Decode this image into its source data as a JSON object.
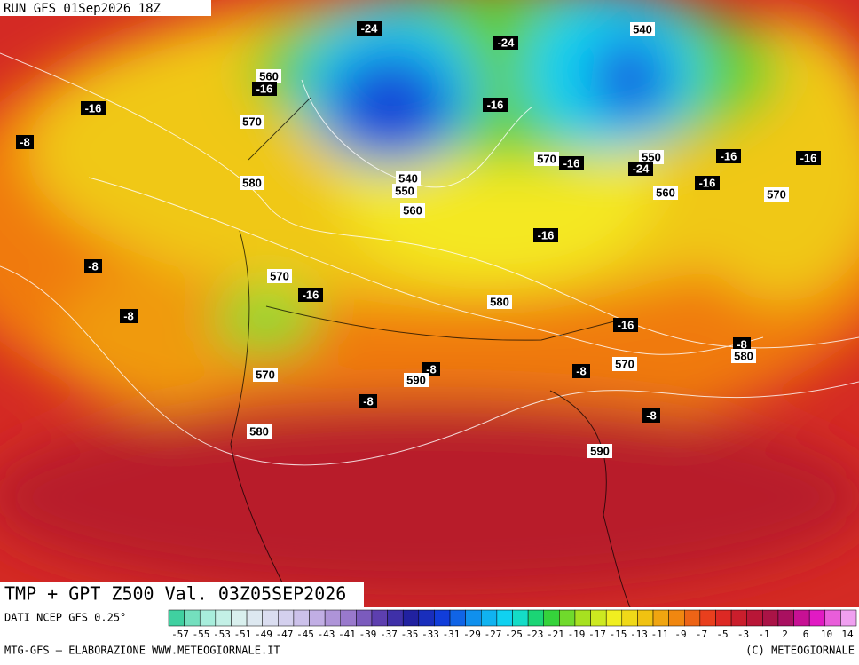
{
  "header": {
    "run": "RUN GFS 01Sep2026 18Z"
  },
  "map": {
    "title": "TMP + GPT Z500 Val. 03Z05SEP2026",
    "labels": [
      "-24",
      "-24",
      "540",
      "560",
      "-16",
      "-16",
      "570",
      "-16",
      "-8",
      "570",
      "-16",
      "550",
      "-24",
      "-16",
      "-16",
      "540",
      "550",
      "560",
      "580",
      "-16",
      "560",
      "570",
      "-16",
      "-8",
      "570",
      "-16",
      "580",
      "-8",
      "-16",
      "-8",
      "580",
      "-8",
      "590",
      "-8",
      "570",
      "570",
      "-8",
      "-8",
      "580",
      "590"
    ]
  },
  "legend": {
    "source": "DATI NCEP GFS 0.25°",
    "labels": [
      -57,
      -55,
      -53,
      -51,
      -49,
      -47,
      -45,
      -43,
      -41,
      -39,
      -37,
      -35,
      -33,
      -31,
      -29,
      -27,
      -25,
      -23,
      -21,
      -19,
      -17,
      -15,
      -13,
      -11,
      -9,
      -7,
      -5,
      -3,
      -1,
      2,
      6,
      10,
      14
    ],
    "colors": [
      "#40d0a0",
      "#b0f0e0",
      "#e0f0f0",
      "#d8d8f0",
      "#c8b8e8",
      "#a080d0",
      "#6040b0",
      "#2020a0",
      "#1040e0",
      "#10a0f0",
      "#10e0f0",
      "#20d040",
      "#a0e020",
      "#f0f020",
      "#f0c010",
      "#f08010",
      "#e83020",
      "#c01830",
      "#a01050",
      "#e010c0",
      "#f0a0f0"
    ]
  },
  "footer": {
    "credit": "MTG-GFS – ELABORAZIONE WWW.METEOGIORNALE.IT",
    "copyright": "(C) METEOGIORNALE"
  }
}
